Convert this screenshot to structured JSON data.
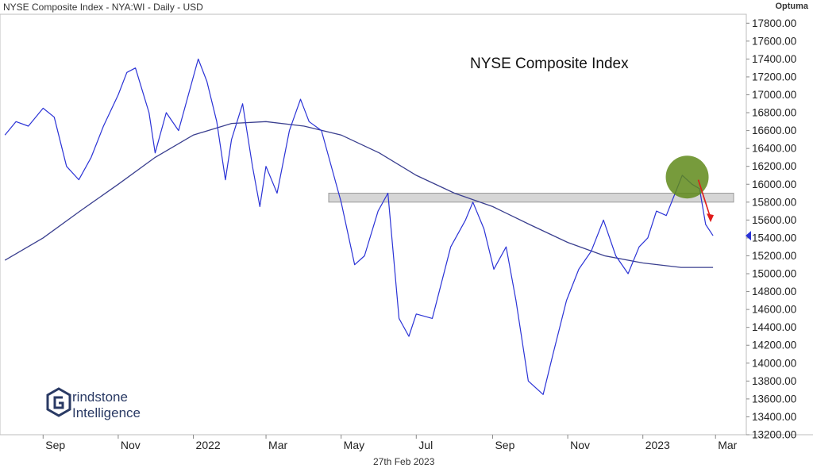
{
  "header": {
    "symbol_line": "NYSE Composite Index - NYA:WI - Daily - USD",
    "brand": "Optuma",
    "date": "27th Feb 2023"
  },
  "logo": {
    "word1": "rindstone",
    "word2": "Intelligence"
  },
  "colors": {
    "price": "#2b33d6",
    "ma": "#3a3f8f",
    "zone": "#d6d6d6",
    "highlight": "#5f8a1a",
    "arrow": "#e01b1b"
  },
  "chart_data": {
    "type": "line",
    "title": "NYSE Composite Index",
    "x_ticks": [
      "Sep",
      "Nov",
      "2022",
      "Mar",
      "May",
      "Jul",
      "Sep",
      "Nov",
      "2023",
      "Mar"
    ],
    "y_ticks": [
      "13200.00",
      "13400.00",
      "13600.00",
      "13800.00",
      "14000.00",
      "14200.00",
      "14400.00",
      "14600.00",
      "14800.00",
      "15000.00",
      "15200.00",
      "15400.00",
      "15600.00",
      "15800.00",
      "16000.00",
      "16200.00",
      "16400.00",
      "16600.00",
      "16800.00",
      "17000.00",
      "17200.00",
      "17400.00",
      "17600.00",
      "17800.00"
    ],
    "ylim": [
      13200,
      17900
    ],
    "last_price": 15425,
    "resistance_zone": [
      15800,
      15900
    ],
    "series": [
      {
        "values": [
          [
            "2021-08-01",
            16550
          ],
          [
            "2021-08-10",
            16700
          ],
          [
            "2021-08-20",
            16650
          ],
          [
            "2021-09-01",
            16850
          ],
          [
            "2021-09-10",
            16750
          ],
          [
            "2021-09-20",
            16200
          ],
          [
            "2021-09-30",
            16050
          ],
          [
            "2021-10-10",
            16300
          ],
          [
            "2021-10-20",
            16650
          ],
          [
            "2021-11-01",
            17000
          ],
          [
            "2021-11-08",
            17250
          ],
          [
            "2021-11-15",
            17300
          ],
          [
            "2021-11-26",
            16800
          ],
          [
            "2021-12-01",
            16350
          ],
          [
            "2021-12-10",
            16800
          ],
          [
            "2021-12-20",
            16600
          ],
          [
            "2022-01-01",
            17200
          ],
          [
            "2022-01-05",
            17400
          ],
          [
            "2022-01-12",
            17150
          ],
          [
            "2022-01-20",
            16700
          ],
          [
            "2022-01-27",
            16050
          ],
          [
            "2022-02-01",
            16500
          ],
          [
            "2022-02-10",
            16900
          ],
          [
            "2022-02-18",
            16200
          ],
          [
            "2022-02-24",
            15750
          ],
          [
            "2022-03-01",
            16200
          ],
          [
            "2022-03-10",
            15900
          ],
          [
            "2022-03-20",
            16600
          ],
          [
            "2022-03-29",
            16950
          ],
          [
            "2022-04-05",
            16700
          ],
          [
            "2022-04-15",
            16600
          ],
          [
            "2022-04-25",
            16100
          ],
          [
            "2022-05-01",
            15800
          ],
          [
            "2022-05-12",
            15100
          ],
          [
            "2022-05-20",
            15200
          ],
          [
            "2022-05-31",
            15700
          ],
          [
            "2022-06-08",
            15900
          ],
          [
            "2022-06-17",
            14500
          ],
          [
            "2022-06-25",
            14300
          ],
          [
            "2022-07-01",
            14550
          ],
          [
            "2022-07-14",
            14500
          ],
          [
            "2022-07-29",
            15300
          ],
          [
            "2022-08-10",
            15600
          ],
          [
            "2022-08-16",
            15800
          ],
          [
            "2022-08-25",
            15500
          ],
          [
            "2022-09-02",
            15050
          ],
          [
            "2022-09-12",
            15300
          ],
          [
            "2022-09-20",
            14700
          ],
          [
            "2022-09-30",
            13800
          ],
          [
            "2022-10-12",
            13650
          ],
          [
            "2022-10-20",
            14100
          ],
          [
            "2022-10-31",
            14700
          ],
          [
            "2022-11-10",
            15050
          ],
          [
            "2022-11-20",
            15250
          ],
          [
            "2022-11-30",
            15600
          ],
          [
            "2022-12-10",
            15200
          ],
          [
            "2022-12-20",
            15000
          ],
          [
            "2022-12-29",
            15300
          ],
          [
            "2023-01-05",
            15400
          ],
          [
            "2023-01-12",
            15700
          ],
          [
            "2023-01-20",
            15650
          ],
          [
            "2023-02-02",
            16100
          ],
          [
            "2023-02-10",
            16000
          ],
          [
            "2023-02-16",
            15950
          ],
          [
            "2023-02-21",
            15550
          ],
          [
            "2023-02-27",
            15425
          ]
        ]
      },
      {
        "values": [
          [
            "2021-08-01",
            15150
          ],
          [
            "2021-09-01",
            15400
          ],
          [
            "2021-10-01",
            15700
          ],
          [
            "2021-11-01",
            16000
          ],
          [
            "2021-12-01",
            16300
          ],
          [
            "2022-01-01",
            16550
          ],
          [
            "2022-02-01",
            16680
          ],
          [
            "2022-03-01",
            16700
          ],
          [
            "2022-04-01",
            16650
          ],
          [
            "2022-05-01",
            16550
          ],
          [
            "2022-06-01",
            16350
          ],
          [
            "2022-07-01",
            16100
          ],
          [
            "2022-08-01",
            15900
          ],
          [
            "2022-09-01",
            15750
          ],
          [
            "2022-10-01",
            15550
          ],
          [
            "2022-11-01",
            15350
          ],
          [
            "2022-12-01",
            15200
          ],
          [
            "2023-01-01",
            15120
          ],
          [
            "2023-02-01",
            15070
          ],
          [
            "2023-02-27",
            15070
          ]
        ]
      }
    ]
  }
}
